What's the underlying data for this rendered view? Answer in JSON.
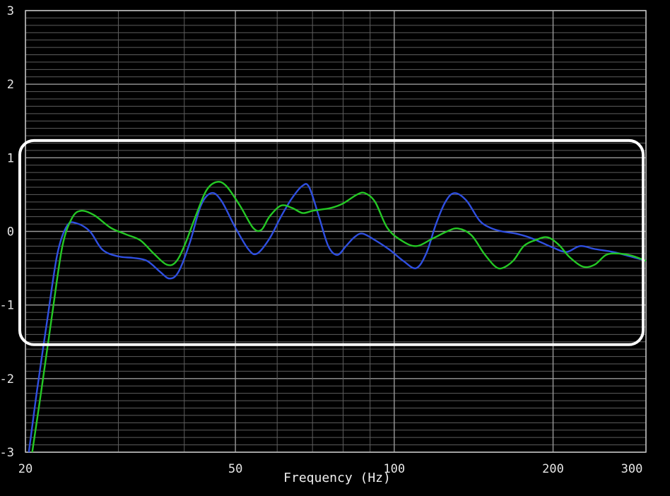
{
  "chart_data": {
    "type": "line",
    "title": "",
    "xlabel": "Frequency (Hz)",
    "ylabel": "",
    "x_scale": "log",
    "xlim": [
      20,
      300
    ],
    "ylim": [
      -3,
      3
    ],
    "x_ticks": [
      20,
      50,
      100,
      200,
      300
    ],
    "x_tick_labels": [
      "20",
      "50",
      "100",
      "200",
      "300"
    ],
    "y_ticks": [
      -3,
      -2,
      -1,
      0,
      1,
      2,
      3
    ],
    "y_tick_labels": [
      "-3",
      "-2",
      "-1",
      "0",
      "1",
      "2",
      "3"
    ],
    "grid": true,
    "colors": {
      "background": "#000000",
      "grid_major": "#9a9a9a",
      "grid_minor": "#5e5e5e",
      "highlight_box": "#ffffff"
    },
    "highlight_box": {
      "x_range": [
        20,
        300
      ],
      "y_range": [
        -1.5,
        1.1
      ]
    },
    "series": [
      {
        "color": "#2f4fe0",
        "points": [
          [
            20.3,
            -3.0
          ],
          [
            21,
            -2.2
          ],
          [
            22,
            -1.2
          ],
          [
            23,
            -0.3
          ],
          [
            24,
            0.08
          ],
          [
            25,
            0.11
          ],
          [
            26.5,
            0.0
          ],
          [
            28,
            -0.25
          ],
          [
            30,
            -0.34
          ],
          [
            32,
            -0.36
          ],
          [
            34,
            -0.4
          ],
          [
            36,
            -0.55
          ],
          [
            37.5,
            -0.64
          ],
          [
            39,
            -0.55
          ],
          [
            41,
            -0.15
          ],
          [
            43,
            0.35
          ],
          [
            45,
            0.52
          ],
          [
            47,
            0.42
          ],
          [
            50,
            0.05
          ],
          [
            53,
            -0.25
          ],
          [
            55,
            -0.3
          ],
          [
            58,
            -0.1
          ],
          [
            61,
            0.2
          ],
          [
            64,
            0.45
          ],
          [
            67,
            0.62
          ],
          [
            69,
            0.6
          ],
          [
            72,
            0.2
          ],
          [
            75,
            -0.2
          ],
          [
            78,
            -0.32
          ],
          [
            81,
            -0.2
          ],
          [
            84,
            -0.08
          ],
          [
            87,
            -0.03
          ],
          [
            92,
            -0.12
          ],
          [
            98,
            -0.25
          ],
          [
            104,
            -0.4
          ],
          [
            110,
            -0.5
          ],
          [
            115,
            -0.3
          ],
          [
            120,
            0.1
          ],
          [
            125,
            0.4
          ],
          [
            130,
            0.52
          ],
          [
            137,
            0.42
          ],
          [
            145,
            0.15
          ],
          [
            152,
            0.05
          ],
          [
            160,
            0.0
          ],
          [
            170,
            -0.03
          ],
          [
            180,
            -0.08
          ],
          [
            190,
            -0.15
          ],
          [
            200,
            -0.22
          ],
          [
            212,
            -0.28
          ],
          [
            225,
            -0.2
          ],
          [
            240,
            -0.24
          ],
          [
            260,
            -0.28
          ],
          [
            280,
            -0.34
          ],
          [
            300,
            -0.4
          ]
        ]
      },
      {
        "color": "#25c825",
        "points": [
          [
            20.6,
            -3.0
          ],
          [
            21.5,
            -2.1
          ],
          [
            22.5,
            -1.1
          ],
          [
            23.5,
            -0.2
          ],
          [
            24.5,
            0.18
          ],
          [
            25.5,
            0.28
          ],
          [
            27,
            0.22
          ],
          [
            29,
            0.05
          ],
          [
            31,
            -0.04
          ],
          [
            33,
            -0.12
          ],
          [
            35,
            -0.3
          ],
          [
            37,
            -0.45
          ],
          [
            38.5,
            -0.42
          ],
          [
            40,
            -0.2
          ],
          [
            42,
            0.2
          ],
          [
            44,
            0.55
          ],
          [
            46,
            0.67
          ],
          [
            48,
            0.62
          ],
          [
            51,
            0.35
          ],
          [
            54,
            0.05
          ],
          [
            56,
            0.02
          ],
          [
            58,
            0.2
          ],
          [
            61,
            0.35
          ],
          [
            64,
            0.32
          ],
          [
            67,
            0.25
          ],
          [
            70,
            0.28
          ],
          [
            73,
            0.3
          ],
          [
            76,
            0.32
          ],
          [
            80,
            0.38
          ],
          [
            85,
            0.5
          ],
          [
            88,
            0.52
          ],
          [
            92,
            0.4
          ],
          [
            97,
            0.05
          ],
          [
            103,
            -0.12
          ],
          [
            110,
            -0.2
          ],
          [
            118,
            -0.1
          ],
          [
            126,
            0.0
          ],
          [
            132,
            0.04
          ],
          [
            140,
            -0.05
          ],
          [
            148,
            -0.3
          ],
          [
            155,
            -0.47
          ],
          [
            160,
            -0.5
          ],
          [
            168,
            -0.4
          ],
          [
            176,
            -0.2
          ],
          [
            185,
            -0.12
          ],
          [
            195,
            -0.08
          ],
          [
            205,
            -0.18
          ],
          [
            215,
            -0.35
          ],
          [
            228,
            -0.48
          ],
          [
            240,
            -0.45
          ],
          [
            252,
            -0.32
          ],
          [
            265,
            -0.3
          ],
          [
            282,
            -0.33
          ],
          [
            300,
            -0.4
          ]
        ]
      }
    ]
  }
}
